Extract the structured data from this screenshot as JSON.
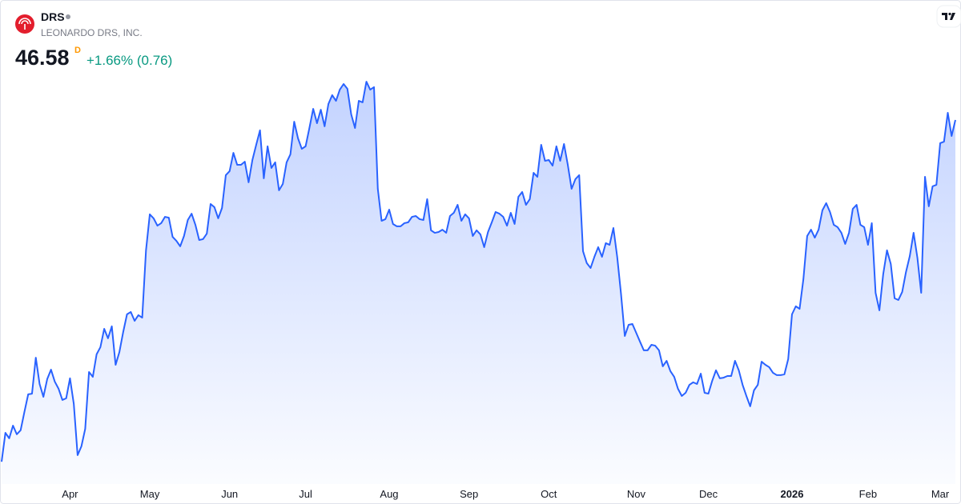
{
  "header": {
    "symbol": "DRS",
    "company": "LEONARDO DRS, INC.",
    "price": "46.58",
    "interval": "D",
    "change": "+1.66% (0.76)"
  },
  "chart_data": {
    "type": "area",
    "color": "#2962ff",
    "xlim": [
      0,
      251
    ],
    "ylim": [
      29,
      50
    ],
    "xticks": [
      {
        "value": 18,
        "label": "Apr"
      },
      {
        "value": 39,
        "label": "May"
      },
      {
        "value": 60,
        "label": "Jun"
      },
      {
        "value": 80,
        "label": "Jul"
      },
      {
        "value": 102,
        "label": "Aug"
      },
      {
        "value": 123,
        "label": "Sep"
      },
      {
        "value": 144,
        "label": "Oct"
      },
      {
        "value": 167,
        "label": "Nov"
      },
      {
        "value": 186,
        "label": "Dec"
      },
      {
        "value": 208,
        "label": "2026"
      },
      {
        "value": 228,
        "label": "Feb"
      },
      {
        "value": 247,
        "label": "Mar"
      }
    ],
    "values": [
      30.35,
      31.72,
      31.46,
      32.06,
      31.65,
      31.84,
      32.71,
      33.55,
      33.58,
      35.29,
      34.04,
      33.43,
      34.27,
      34.72,
      34.15,
      33.81,
      33.28,
      33.36,
      34.31,
      33.09,
      30.66,
      31.08,
      31.91,
      34.61,
      34.38,
      35.45,
      35.79,
      36.66,
      36.21,
      36.78,
      34.95,
      35.56,
      36.51,
      37.35,
      37.46,
      37.04,
      37.31,
      37.19,
      40.39,
      42.1,
      41.91,
      41.56,
      41.68,
      41.98,
      41.94,
      41.03,
      40.84,
      40.58,
      41.07,
      41.83,
      42.13,
      41.6,
      40.88,
      40.92,
      41.18,
      42.59,
      42.44,
      41.91,
      42.4,
      43.96,
      44.15,
      45.02,
      44.45,
      44.45,
      44.6,
      43.62,
      44.68,
      45.4,
      46.09,
      43.81,
      45.33,
      44.3,
      44.57,
      43.24,
      43.54,
      44.57,
      44.95,
      46.5,
      45.71,
      45.21,
      45.33,
      46.2,
      47.11,
      46.43,
      47.07,
      46.28,
      47.34,
      47.76,
      47.49,
      48.02,
      48.29,
      48.06,
      46.85,
      46.2,
      47.49,
      47.42,
      48.4,
      48.02,
      48.14,
      43.31,
      41.79,
      41.87,
      42.32,
      41.64,
      41.53,
      41.53,
      41.68,
      41.72,
      41.98,
      42.02,
      41.87,
      41.83,
      42.82,
      41.34,
      41.22,
      41.26,
      41.37,
      41.22,
      42.02,
      42.17,
      42.55,
      41.79,
      42.1,
      41.91,
      41.07,
      41.34,
      41.15,
      40.54,
      41.26,
      41.72,
      42.21,
      42.13,
      41.98,
      41.56,
      42.17,
      41.64,
      42.93,
      43.16,
      42.55,
      42.82,
      44.07,
      43.88,
      45.4,
      44.64,
      44.68,
      44.41,
      45.33,
      44.64,
      45.44,
      44.45,
      43.31,
      43.77,
      43.96,
      40.35,
      39.78,
      39.55,
      40.08,
      40.54,
      40.08,
      40.73,
      40.65,
      41.45,
      40.08,
      38.33,
      36.32,
      36.85,
      36.89,
      36.47,
      36.05,
      35.64,
      35.64,
      35.9,
      35.86,
      35.64,
      34.88,
      35.14,
      34.65,
      34.38,
      33.81,
      33.47,
      33.62,
      34.0,
      34.12,
      34.04,
      34.53,
      33.62,
      33.58,
      34.19,
      34.69,
      34.31,
      34.34,
      34.42,
      34.42,
      35.14,
      34.69,
      34.0,
      33.47,
      32.98,
      33.74,
      34.0,
      35.1,
      34.95,
      34.84,
      34.57,
      34.46,
      34.46,
      34.5,
      35.22,
      37.35,
      37.73,
      37.61,
      39.02,
      41.07,
      41.37,
      40.99,
      41.37,
      42.29,
      42.63,
      42.21,
      41.6,
      41.49,
      41.22,
      40.69,
      41.22,
      42.36,
      42.55,
      41.6,
      41.49,
      40.65,
      41.68,
      38.37,
      37.54,
      39.25,
      40.39,
      39.74,
      38.11,
      38.03,
      38.41,
      39.36,
      40.12,
      41.22,
      40.04,
      38.37,
      43.88,
      42.48,
      43.43,
      43.5,
      45.48,
      45.55,
      46.92,
      45.82,
      46.58
    ]
  }
}
